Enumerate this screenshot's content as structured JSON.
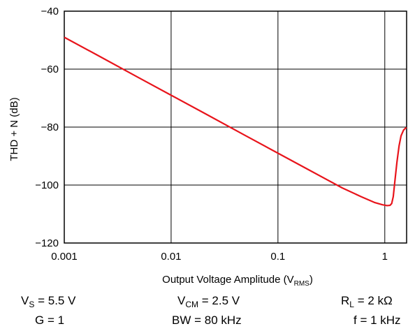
{
  "chart_data": {
    "type": "line",
    "title": "",
    "xlabel": "Output Voltage Amplitude (V",
    "xlabel_sub": "RMS",
    "xlabel_end": ")",
    "ylabel": "THD + N (dB)",
    "xscale": "log",
    "xlim": [
      0.001,
      1.6
    ],
    "ylim": [
      -120,
      -40
    ],
    "grid": true,
    "x_ticks": [
      {
        "value": 0.001,
        "label": "0.001"
      },
      {
        "value": 0.01,
        "label": "0.01"
      },
      {
        "value": 0.1,
        "label": "0.1"
      },
      {
        "value": 1,
        "label": "1"
      }
    ],
    "y_ticks": [
      {
        "value": -40,
        "label": "−40"
      },
      {
        "value": -60,
        "label": "−60"
      },
      {
        "value": -80,
        "label": "−80"
      },
      {
        "value": -100,
        "label": "−100"
      },
      {
        "value": -120,
        "label": "−120"
      }
    ],
    "line_color": "#e8141b",
    "series": [
      {
        "x": [
          0.001,
          0.002,
          0.005,
          0.01,
          0.02,
          0.05,
          0.1,
          0.2,
          0.4,
          0.6,
          0.8,
          0.95,
          1.05,
          1.12,
          1.16,
          1.2,
          1.24,
          1.3,
          1.36,
          1.42,
          1.5,
          1.56,
          1.6
        ],
        "y": [
          -49,
          -55,
          -63,
          -69,
          -75,
          -83,
          -89,
          -95,
          -101,
          -104,
          -106,
          -106.8,
          -107.1,
          -107,
          -106.4,
          -104,
          -99,
          -92,
          -86.5,
          -83,
          -81,
          -80.4,
          -80.2
        ]
      }
    ]
  },
  "conditions": {
    "vs_main": "V",
    "vs_sub": "S",
    "vs_val": " = 5.5 V",
    "vcm_main": "V",
    "vcm_sub": "CM",
    "vcm_val": " = 2.5 V",
    "rl_main": "R",
    "rl_sub": "L",
    "rl_val": " = 2 kΩ",
    "g": "G = 1",
    "bw": "BW = 80 kHz",
    "f": "f = 1 kHz"
  }
}
